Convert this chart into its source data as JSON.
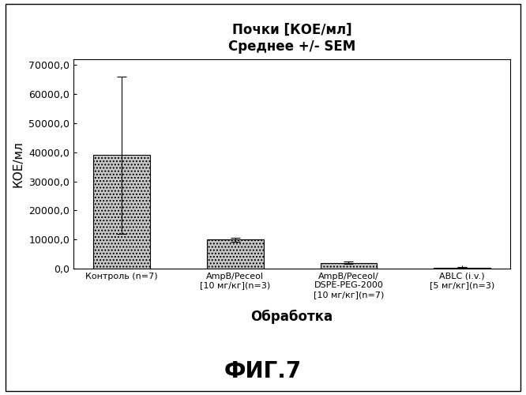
{
  "title_line1": "Почки [КОЕ/мл]",
  "title_line2": "Среднее +/- SEM",
  "xlabel": "Обработка",
  "ylabel": "КОЕ/мл",
  "categories": [
    "Контроль (n=7)",
    "AmpB/Peceol\n[10 мг/кг](n=3)",
    "AmpB/Peceol/\nDSPE-PEG-2000\n[10 мг/кг](n=7)",
    "ABLC (i.v.)\n[5 мг/кг](n=3)"
  ],
  "values": [
    39000,
    10000,
    2000,
    400
  ],
  "errors": [
    27000,
    700,
    500,
    200
  ],
  "ylim": [
    0,
    72000
  ],
  "yticks": [
    0,
    10000,
    20000,
    30000,
    40000,
    50000,
    60000,
    70000
  ],
  "ytick_labels": [
    "0,0",
    "10000,0",
    "20000,0",
    "30000,0",
    "40000,0",
    "50000,0",
    "60000,0",
    "70000,0"
  ],
  "bar_color": "#c8c8c8",
  "bar_edgecolor": "#000000",
  "fig_width": 6.66,
  "fig_height": 5.0,
  "dpi": 100,
  "background_color": "#ffffff",
  "title_fontsize": 12,
  "axis_label_fontsize": 11,
  "tick_fontsize": 9,
  "bottom_fig_label": "ФИГ.7"
}
